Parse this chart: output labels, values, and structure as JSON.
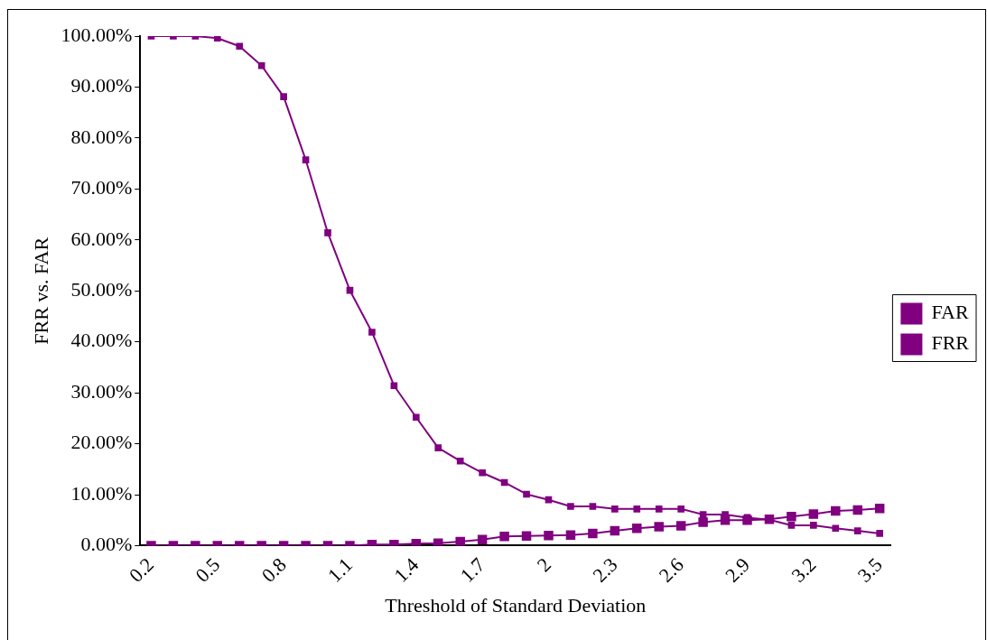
{
  "chart_data": {
    "type": "line",
    "xlabel": "Threshold of Standard Deviation",
    "ylabel": "FRR vs. FAR",
    "categories": [
      "0.2",
      null,
      null,
      "0.5",
      null,
      null,
      "0.8",
      null,
      null,
      "1.1",
      null,
      null,
      "1.4",
      null,
      null,
      "1.7",
      null,
      null,
      "2",
      null,
      null,
      "2.3",
      null,
      null,
      "2.6",
      null,
      null,
      "2.9",
      null,
      null,
      "3.2",
      null,
      null,
      "3.5"
    ],
    "series": [
      {
        "name": "FAR",
        "color": "#800080",
        "marker": "square",
        "values": [
          0,
          0,
          0,
          0,
          0,
          0,
          0,
          0,
          0,
          0,
          0.2,
          0.2,
          0.4,
          0.5,
          0.8,
          1.2,
          1.8,
          1.9,
          2.0,
          2.1,
          2.4,
          2.9,
          3.4,
          3.7,
          3.9,
          4.6,
          5.0,
          5.0,
          5.2,
          5.7,
          6.2,
          6.8,
          7.0,
          7.3
        ]
      },
      {
        "name": "FRR",
        "color": "#800080",
        "marker": "square",
        "values": [
          100,
          100,
          100,
          99.6,
          98,
          94.2,
          88.1,
          75.7,
          61.4,
          50.1,
          41.9,
          31.4,
          25.2,
          19.2,
          16.6,
          14.3,
          12.4,
          10.1,
          9.0,
          7.7,
          7.7,
          7.2,
          7.2,
          7.2,
          7.2,
          6.1,
          6.1,
          5.5,
          5.1,
          4.0,
          4.0,
          3.4,
          2.9,
          2.4
        ]
      }
    ],
    "ylim": [
      0,
      100
    ],
    "yticks": [
      {
        "value": 0,
        "label": "0.00%"
      },
      {
        "value": 10,
        "label": "10.00%"
      },
      {
        "value": 20,
        "label": "20.00%"
      },
      {
        "value": 30,
        "label": "30.00%"
      },
      {
        "value": 40,
        "label": "40.00%"
      },
      {
        "value": 50,
        "label": "50.00%"
      },
      {
        "value": 60,
        "label": "60.00%"
      },
      {
        "value": 70,
        "label": "70.00%"
      },
      {
        "value": 80,
        "label": "80.00%"
      },
      {
        "value": 90,
        "label": "90.00%"
      },
      {
        "value": 100,
        "label": "100.00%"
      }
    ],
    "grid": false,
    "legend": "right",
    "line_style": "solid"
  }
}
